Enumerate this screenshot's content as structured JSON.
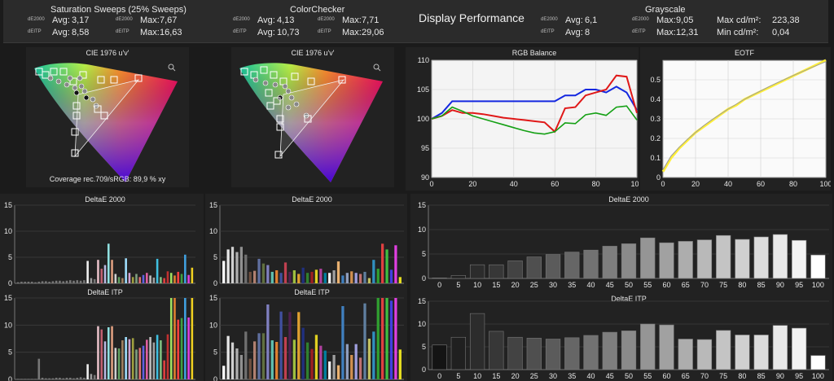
{
  "header": {
    "saturation": {
      "title": "Saturation Sweeps (25% Sweeps)",
      "de_label": "dE2000",
      "itp_label": "dEITP",
      "avg_de_label": "Avg:",
      "avg_de": "3,17",
      "max_de_label": "Max:",
      "max_de": "7,67",
      "avg_itp_label": "Avg:",
      "avg_itp": "8,58",
      "max_itp_label": "Max:",
      "max_itp": "16,63"
    },
    "colorchecker": {
      "title": "ColorChecker",
      "de_label": "dE2000",
      "itp_label": "dEITP",
      "avg_de_label": "Avg:",
      "avg_de": "4,13",
      "max_de_label": "Max:",
      "max_de": "7,71",
      "avg_itp_label": "Avg:",
      "avg_itp": "10,73",
      "max_itp_label": "Max:",
      "max_itp": "29,06"
    },
    "center_title": "Display Performance",
    "grayscale": {
      "title": "Grayscale",
      "de_label": "dE2000",
      "itp_label": "dEITP",
      "avg_de_label": "Avg:",
      "avg_de": "6,1",
      "max_de_label": "Max:",
      "max_de": "9,05",
      "avg_itp_label": "Avg:",
      "avg_itp": "8",
      "max_itp_label": "Max:",
      "max_itp": "12,31",
      "max_cd_label": "Max cd/m²:",
      "max_cd": "223,38",
      "min_cd_label": "Min cd/m²:",
      "min_cd": "0,04"
    }
  },
  "colors": {
    "panel": "#222222",
    "frame": "#8c8c8c",
    "grid": "#3c3c3c",
    "text": "#e6e6e6",
    "red": "#e01818",
    "green": "#14a014",
    "blue": "#1428e0",
    "yellow": "#ffef38"
  },
  "chart_data": [
    {
      "id": "cie1",
      "type": "scatter",
      "title": "CIE 1976 u'v'",
      "annotation": "Coverage rec.709/sRGB:  89,9 % xy",
      "icon": "zoom-icon"
    },
    {
      "id": "cie2",
      "type": "scatter",
      "title": "CIE 1976 u'v'",
      "icon": "zoom-icon"
    },
    {
      "id": "rgb",
      "type": "line",
      "title": "RGB Balance",
      "xlim": [
        0,
        100
      ],
      "ylim": [
        90,
        110
      ],
      "xticks": [
        0,
        20,
        40,
        60,
        80,
        100
      ],
      "yticks": [
        90,
        95,
        100,
        105,
        110
      ],
      "x": [
        0,
        5,
        10,
        15,
        20,
        25,
        30,
        35,
        40,
        45,
        50,
        55,
        60,
        65,
        70,
        75,
        80,
        85,
        90,
        95,
        100
      ],
      "series": [
        {
          "color": "#1428e0",
          "values": [
            100,
            101,
            103,
            103,
            103,
            103,
            103,
            103,
            103,
            103,
            103,
            103,
            103,
            104,
            104,
            105,
            105,
            104.5,
            105.5,
            104.5,
            101.5
          ]
        },
        {
          "color": "#e01818",
          "values": [
            100,
            100.5,
            101.5,
            101,
            101,
            100.8,
            100.5,
            100.2,
            100,
            99.8,
            99.6,
            99.4,
            97.8,
            101.8,
            102,
            104,
            104.5,
            105,
            107.4,
            107.2,
            101
          ]
        },
        {
          "color": "#14a014",
          "values": [
            100,
            100.5,
            102,
            101.3,
            100.5,
            100,
            99.5,
            99,
            98.5,
            98,
            97.6,
            97.4,
            97.8,
            99.3,
            99.2,
            100.7,
            101,
            100.6,
            102,
            102.2,
            99.8
          ]
        }
      ]
    },
    {
      "id": "eotf",
      "type": "line",
      "title": "EOTF",
      "xlim": [
        0,
        100
      ],
      "ylim": [
        0,
        0.6
      ],
      "xticks": [
        0,
        20,
        40,
        60,
        80,
        100
      ],
      "yticks": [
        "0",
        "0.1",
        "0.2",
        "0.3",
        "0.4",
        "0.5"
      ],
      "x": [
        0,
        5,
        10,
        15,
        20,
        25,
        30,
        35,
        40,
        45,
        50,
        55,
        60,
        65,
        70,
        75,
        80,
        85,
        90,
        95,
        100
      ],
      "series": [
        {
          "color": "#ffef38",
          "values": [
            0.03,
            0.1,
            0.15,
            0.19,
            0.23,
            0.26,
            0.29,
            0.32,
            0.35,
            0.37,
            0.4,
            0.42,
            0.44,
            0.46,
            0.48,
            0.5,
            0.52,
            0.54,
            0.56,
            0.58,
            0.6
          ]
        },
        {
          "color": "#9a9a9a",
          "values": [
            0.04,
            0.11,
            0.155,
            0.195,
            0.23,
            0.265,
            0.295,
            0.323,
            0.35,
            0.375,
            0.4,
            0.422,
            0.443,
            0.464,
            0.484,
            0.503,
            0.522,
            0.54,
            0.558,
            0.576,
            0.593
          ]
        }
      ]
    },
    {
      "id": "sat_de",
      "type": "bar",
      "title": "DeltaE 2000",
      "ylim": [
        0,
        15
      ],
      "yticks": [
        0,
        5,
        10,
        15
      ],
      "values": [
        0.2,
        0.3,
        0.3,
        0.3,
        0.3,
        0.2,
        0.3,
        0.4,
        0.4,
        0.3,
        0.4,
        0.5,
        0.5,
        0.4,
        0.5,
        0.6,
        0.5,
        0.6,
        0.5,
        0.6,
        4.3,
        1.0,
        0.8,
        4.5,
        2.8,
        3.5,
        7.6,
        4.5,
        1.8,
        1.2,
        1.0,
        4.8,
        2.0,
        1.2,
        1.8,
        1.2,
        1.6,
        2.0,
        1.5,
        1.1,
        4.7,
        1.2,
        1.0,
        2.3,
        2.0,
        1.5,
        2.2,
        1.8,
        5.5,
        1.6,
        3.0
      ],
      "colors": [
        "#777",
        "#777",
        "#777",
        "#777",
        "#777",
        "#777",
        "#777",
        "#777",
        "#777",
        "#777",
        "#777",
        "#777",
        "#777",
        "#777",
        "#777",
        "#777",
        "#777",
        "#777",
        "#777",
        "#777",
        "#f0f0f0",
        "#999",
        "#777",
        "#e8c0c8",
        "#c06070",
        "#b8b8e0",
        "#90e0e0",
        "#e0a080",
        "#d0d0d0",
        "#60a060",
        "#a08060",
        "#a0e0ff",
        "#d0a0d0",
        "#a0a040",
        "#80a080",
        "#e07070",
        "#6060e0",
        "#e060a0",
        "#c0c0c0",
        "#a0a0a0",
        "#40c0e0",
        "#80c080",
        "#e04040",
        "#c03030",
        "#a0e060",
        "#e08030",
        "#ff4040",
        "#40a040",
        "#40a0e0",
        "#e040e0",
        "#f0d020"
      ]
    },
    {
      "id": "cc_de",
      "type": "bar",
      "title": "DeltaE 2000",
      "ylim": [
        0,
        15
      ],
      "yticks": [
        0,
        5,
        10,
        15
      ],
      "values": [
        4.3,
        6.5,
        7.0,
        6.0,
        7.0,
        5.5,
        2.2,
        2.4,
        4.7,
        3.8,
        3.5,
        2.2,
        2.5,
        2.0,
        4.0,
        2.2,
        2.5,
        1.8,
        3.0,
        2.0,
        2.2,
        2.6,
        2.8,
        2.0,
        2.0,
        2.5,
        4.2,
        1.5,
        2.0,
        2.3,
        2.0,
        1.8,
        2.2,
        1.0,
        4.5,
        2.8,
        7.6,
        6.5,
        2.6,
        7.3,
        1.2
      ],
      "colors": [
        "#ffffff",
        "#e8e8e8",
        "#d0d0d0",
        "#b0b0b0",
        "#909090",
        "#707070",
        "#705040",
        "#b08070",
        "#6070a0",
        "#607040",
        "#8080c0",
        "#60c0b0",
        "#e08030",
        "#4050a0",
        "#c04050",
        "#502050",
        "#a0c040",
        "#e0a030",
        "#203080",
        "#308030",
        "#a02020",
        "#e0d020",
        "#b040a0",
        "#0080a0",
        "#f0f0f0",
        "#a0a0a0",
        "#e8b070",
        "#4080c0",
        "#90a0c0",
        "#d09050",
        "#a0a0e0",
        "#c07070",
        "#6080a0",
        "#c0c060",
        "#3090c0",
        "#30a030",
        "#e04040",
        "#40c040",
        "#4040e0",
        "#e040e0",
        "#e8e020"
      ]
    },
    {
      "id": "gs_de",
      "type": "bar",
      "title": "DeltaE 2000",
      "ylim": [
        0,
        15
      ],
      "yticks": [
        0,
        5,
        10,
        15
      ],
      "categories": [
        "0",
        "5",
        "10",
        "15",
        "20",
        "25",
        "30",
        "35",
        "40",
        "45",
        "50",
        "55",
        "60",
        "65",
        "70",
        "75",
        "80",
        "85",
        "90",
        "95",
        "100"
      ],
      "values": [
        0.1,
        0.6,
        2.8,
        2.8,
        3.6,
        4.4,
        4.9,
        5.4,
        5.8,
        6.6,
        7.1,
        8.3,
        7.3,
        7.6,
        7.9,
        8.8,
        8.0,
        8.5,
        9.0,
        7.8,
        4.8
      ]
    },
    {
      "id": "sat_itp",
      "type": "bar",
      "title": "DeltaE ITP",
      "ylim": [
        0,
        15
      ],
      "yticks": [
        0,
        5,
        10,
        15
      ],
      "values": [
        0.1,
        0.1,
        0.1,
        0.1,
        0.1,
        0.1,
        3.8,
        0.3,
        0.2,
        0.2,
        0.2,
        0.3,
        0.3,
        0.2,
        0.3,
        0.3,
        0.2,
        0.3,
        0.4,
        0.3,
        2.8,
        1.0,
        0.8,
        9.8,
        9.2,
        7.0,
        9.6,
        9.8,
        5.8,
        5.7,
        7.2,
        7.8,
        7.4,
        7.6,
        5.5,
        5.8,
        6.2,
        7.3,
        7.8,
        6.8,
        8.2,
        7.2,
        3.5,
        8.3,
        15.0,
        15.0,
        11.0,
        11.3,
        15.0,
        11.4,
        15.0
      ],
      "colors": [
        "#777",
        "#777",
        "#777",
        "#777",
        "#777",
        "#777",
        "#777",
        "#777",
        "#777",
        "#777",
        "#777",
        "#777",
        "#777",
        "#777",
        "#777",
        "#777",
        "#777",
        "#777",
        "#777",
        "#777",
        "#f0f0f0",
        "#999",
        "#777",
        "#e8c0c8",
        "#c06070",
        "#b8b8e0",
        "#90e0e0",
        "#e0a080",
        "#d0d0d0",
        "#60a060",
        "#a08060",
        "#a0e0ff",
        "#d0a0d0",
        "#a0a040",
        "#80a080",
        "#e07070",
        "#6060e0",
        "#e060a0",
        "#c0c0c0",
        "#a0a0a0",
        "#40c0e0",
        "#80c080",
        "#e04040",
        "#c03030",
        "#a0e060",
        "#e08030",
        "#ff4040",
        "#40a040",
        "#40a0e0",
        "#e040e0",
        "#f0d020"
      ]
    },
    {
      "id": "cc_itp",
      "type": "bar",
      "title": "DeltaE ITP",
      "ylim": [
        0,
        15
      ],
      "yticks": [
        0,
        5,
        10,
        15
      ],
      "values": [
        2.5,
        8.0,
        6.8,
        5.7,
        4.5,
        8.8,
        3.8,
        7.0,
        8.5,
        8.5,
        13.8,
        7.2,
        6.9,
        12.5,
        7.8,
        12.4,
        7.3,
        12.4,
        9.5,
        6.8,
        5.6,
        8.2,
        6.2,
        5.3,
        3.3,
        4.5,
        2.6,
        13.5,
        6.5,
        4.5,
        6.5,
        4.0,
        14.0,
        7.5,
        8.8,
        15.0,
        15.0,
        15.0,
        14.5,
        15.0,
        5.5
      ],
      "colors": [
        "#ffffff",
        "#e8e8e8",
        "#d0d0d0",
        "#b0b0b0",
        "#909090",
        "#707070",
        "#705040",
        "#b08070",
        "#6070a0",
        "#607040",
        "#8080c0",
        "#60c0b0",
        "#e08030",
        "#4050a0",
        "#c04050",
        "#502050",
        "#a0c040",
        "#e0a030",
        "#203080",
        "#308030",
        "#a02020",
        "#e0d020",
        "#b040a0",
        "#0080a0",
        "#f0f0f0",
        "#a0a0a0",
        "#e8b070",
        "#4080c0",
        "#90a0c0",
        "#d09050",
        "#a0a0e0",
        "#c07070",
        "#6080a0",
        "#c0c060",
        "#3090c0",
        "#30a030",
        "#e04040",
        "#40c040",
        "#4040e0",
        "#e040e0",
        "#e8e020"
      ]
    },
    {
      "id": "gs_itp",
      "type": "bar",
      "title": "DeltaE ITP",
      "ylim": [
        0,
        15
      ],
      "yticks": [
        0,
        5,
        10,
        15
      ],
      "categories": [
        "0",
        "5",
        "10",
        "15",
        "20",
        "25",
        "30",
        "35",
        "40",
        "45",
        "50",
        "55",
        "60",
        "65",
        "70",
        "75",
        "80",
        "85",
        "90",
        "95",
        "100"
      ],
      "values": [
        5.4,
        7.1,
        12.3,
        8.4,
        7.1,
        6.9,
        6.7,
        7.0,
        7.5,
        8.2,
        8.5,
        10.0,
        9.8,
        6.7,
        6.6,
        8.6,
        7.6,
        7.6,
        9.7,
        9.1,
        3.1
      ]
    }
  ]
}
